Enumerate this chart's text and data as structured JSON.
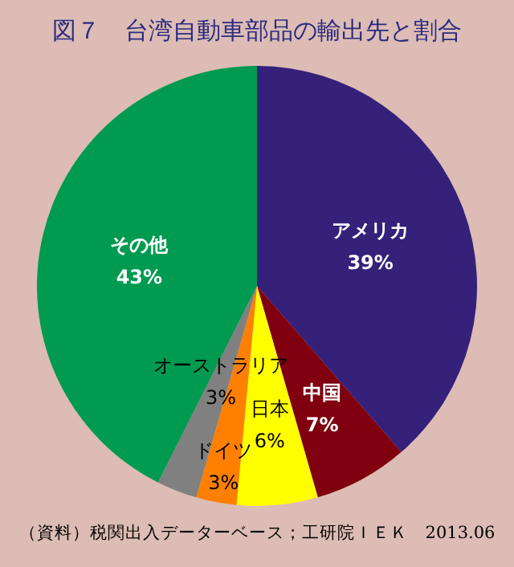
{
  "chart_data": {
    "type": "pie",
    "title": "図７　台湾自動車部品の輸出先と割合",
    "categories": [
      "アメリカ",
      "中国",
      "日本",
      "ドイツ",
      "オーストラリア",
      "その他"
    ],
    "values": [
      39,
      7,
      6,
      3,
      3,
      43
    ],
    "colors": [
      "#35207a",
      "#800010",
      "#ffff00",
      "#ff8000",
      "#808080",
      "#009a50"
    ],
    "value_labels": [
      "39%",
      "7%",
      "6%",
      "3%",
      "3%",
      "43%"
    ],
    "annotations": [
      "（資料）税関出入データーベース；工研院ＩＥＫ　2013.06"
    ]
  }
}
